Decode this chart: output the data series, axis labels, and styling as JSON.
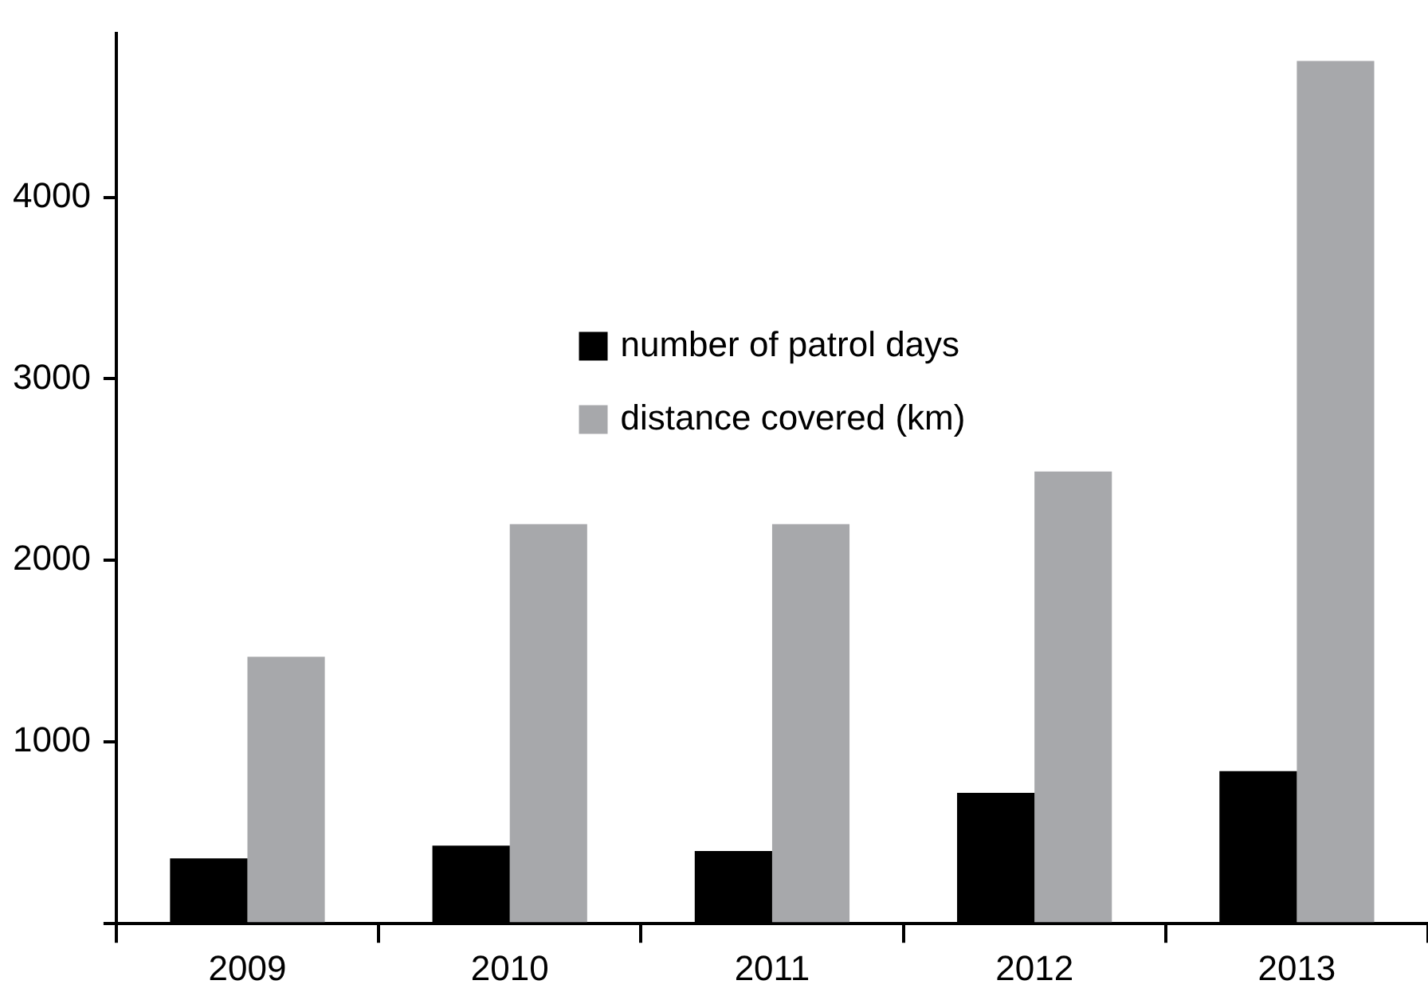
{
  "chart_data": {
    "type": "bar",
    "categories": [
      "2009",
      "2010",
      "2011",
      "2012",
      "2013"
    ],
    "series": [
      {
        "name": "number of patrol days",
        "color": "#000000",
        "values": [
          360,
          430,
          400,
          720,
          840
        ]
      },
      {
        "name": "distance covered (km)",
        "color": "#a7a8ab",
        "values": [
          1470,
          2200,
          2200,
          2490,
          4750
        ]
      }
    ],
    "ylim": [
      0,
      4900
    ],
    "yticks": [
      {
        "value": 0,
        "label": null
      },
      1000,
      2000,
      3000,
      4000
    ],
    "grid": false,
    "legend": "top"
  }
}
